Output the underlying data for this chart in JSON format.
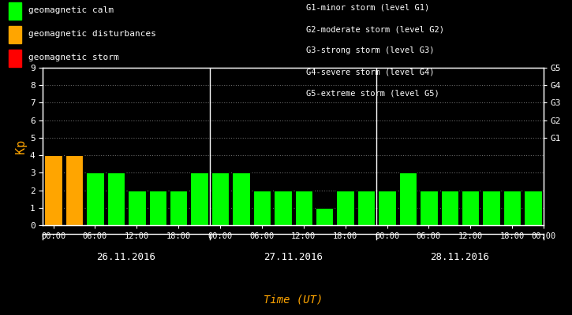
{
  "background_color": "#000000",
  "plot_bg_color": "#000000",
  "bar_data": [
    {
      "kp": 4,
      "color": "#FFA500"
    },
    {
      "kp": 4,
      "color": "#FFA500"
    },
    {
      "kp": 3,
      "color": "#00FF00"
    },
    {
      "kp": 3,
      "color": "#00FF00"
    },
    {
      "kp": 2,
      "color": "#00FF00"
    },
    {
      "kp": 2,
      "color": "#00FF00"
    },
    {
      "kp": 2,
      "color": "#00FF00"
    },
    {
      "kp": 3,
      "color": "#00FF00"
    },
    {
      "kp": 3,
      "color": "#00FF00"
    },
    {
      "kp": 3,
      "color": "#00FF00"
    },
    {
      "kp": 2,
      "color": "#00FF00"
    },
    {
      "kp": 2,
      "color": "#00FF00"
    },
    {
      "kp": 2,
      "color": "#00FF00"
    },
    {
      "kp": 1,
      "color": "#00FF00"
    },
    {
      "kp": 2,
      "color": "#00FF00"
    },
    {
      "kp": 2,
      "color": "#00FF00"
    },
    {
      "kp": 2,
      "color": "#00FF00"
    },
    {
      "kp": 3,
      "color": "#00FF00"
    },
    {
      "kp": 2,
      "color": "#00FF00"
    },
    {
      "kp": 2,
      "color": "#00FF00"
    },
    {
      "kp": 2,
      "color": "#00FF00"
    },
    {
      "kp": 2,
      "color": "#00FF00"
    },
    {
      "kp": 2,
      "color": "#00FF00"
    },
    {
      "kp": 2,
      "color": "#00FF00"
    }
  ],
  "day_labels": [
    "26.11.2016",
    "27.11.2016",
    "28.11.2016"
  ],
  "time_labels": [
    "00:00",
    "06:00",
    "12:00",
    "18:00"
  ],
  "ylabel": "Kp",
  "xlabel": "Time (UT)",
  "ylim": [
    0,
    9
  ],
  "yticks": [
    0,
    1,
    2,
    3,
    4,
    5,
    6,
    7,
    8,
    9
  ],
  "right_labels": [
    {
      "y": 5.0,
      "text": "G1"
    },
    {
      "y": 6.0,
      "text": "G2"
    },
    {
      "y": 7.0,
      "text": "G3"
    },
    {
      "y": 8.0,
      "text": "G4"
    },
    {
      "y": 9.0,
      "text": "G5"
    }
  ],
  "legend_items": [
    {
      "color": "#00FF00",
      "label": "geomagnetic calm"
    },
    {
      "color": "#FFA500",
      "label": "geomagnetic disturbances"
    },
    {
      "color": "#FF0000",
      "label": "geomagnetic storm"
    }
  ],
  "legend_right_lines": [
    "G1-minor storm (level G1)",
    "G2-moderate storm (level G2)",
    "G3-strong storm (level G3)",
    "G4-severe storm (level G4)",
    "G5-extreme storm (level G5)"
  ],
  "white_color": "#FFFFFF",
  "orange_color": "#FFA500",
  "grid_color": "#FFFFFF",
  "axis_color": "#FFFFFF",
  "tick_label_color": "#FFFFFF",
  "ylabel_color": "#FFA500",
  "xlabel_color": "#FFA500",
  "day_label_color": "#FFFFFF",
  "divider_color": "#FFFFFF"
}
